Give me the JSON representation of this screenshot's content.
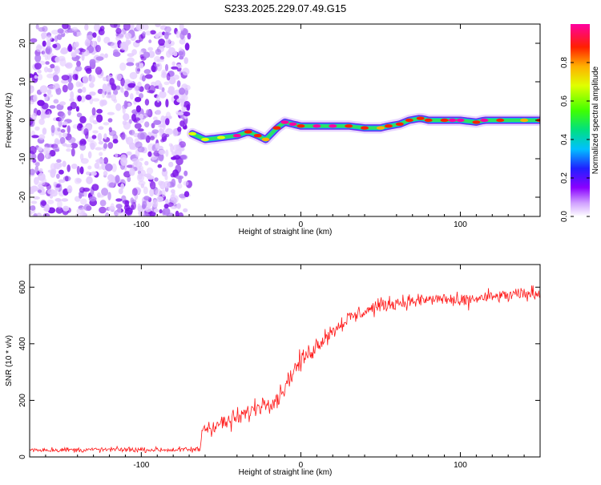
{
  "title": "S233.2025.229.07.49.G15",
  "colors": {
    "signal": "#ff1a1a",
    "noise": "#8a2be2",
    "axis": "#000000"
  },
  "chart_data": [
    {
      "type": "heatmap",
      "title": "S233.2025.229.07.49.G15",
      "xlabel": "Height of straight line (km)",
      "ylabel": "Frequency (Hz)",
      "xlim": [
        -170,
        150
      ],
      "ylim": [
        -25,
        25
      ],
      "xticks": [
        -100,
        0,
        100
      ],
      "yticks": [
        -20,
        -10,
        0,
        10,
        20
      ],
      "colorbar": {
        "label": "Normalized spectral amplitude",
        "range": [
          0,
          1
        ],
        "ticks": [
          0.0,
          0.2,
          0.4,
          0.6,
          0.8
        ]
      },
      "noise_region_x": [
        -170,
        -70
      ],
      "ridge": [
        {
          "x": -68,
          "y": -3.5
        },
        {
          "x": -60,
          "y": -5
        },
        {
          "x": -50,
          "y": -4.5
        },
        {
          "x": -40,
          "y": -4
        },
        {
          "x": -33,
          "y": -3
        },
        {
          "x": -27,
          "y": -4
        },
        {
          "x": -22,
          "y": -5
        },
        {
          "x": -15,
          "y": -2
        },
        {
          "x": -10,
          "y": -0.5
        },
        {
          "x": -5,
          "y": -1
        },
        {
          "x": 0,
          "y": -1.5
        },
        {
          "x": 10,
          "y": -1.5
        },
        {
          "x": 20,
          "y": -1.5
        },
        {
          "x": 30,
          "y": -1.5
        },
        {
          "x": 40,
          "y": -2
        },
        {
          "x": 50,
          "y": -2
        },
        {
          "x": 55,
          "y": -1.5
        },
        {
          "x": 62,
          "y": -1
        },
        {
          "x": 68,
          "y": 0
        },
        {
          "x": 75,
          "y": 0.5
        },
        {
          "x": 80,
          "y": 0
        },
        {
          "x": 90,
          "y": 0
        },
        {
          "x": 95,
          "y": 0
        },
        {
          "x": 100,
          "y": 0
        },
        {
          "x": 110,
          "y": -0.5
        },
        {
          "x": 115,
          "y": 0
        },
        {
          "x": 125,
          "y": 0
        },
        {
          "x": 140,
          "y": 0
        },
        {
          "x": 150,
          "y": 0
        }
      ]
    },
    {
      "type": "line",
      "xlabel": "Height of straight line (km)",
      "ylabel": "SNR (10 * v/v)",
      "xlim": [
        -170,
        150
      ],
      "ylim": [
        0,
        680
      ],
      "xticks": [
        -100,
        0,
        100
      ],
      "yticks": [
        0,
        200,
        400,
        600
      ],
      "series": [
        {
          "name": "SNR",
          "x": [
            -170,
            -140,
            -110,
            -80,
            -63,
            -62,
            -55,
            -45,
            -35,
            -25,
            -18,
            -14,
            -10,
            -5,
            0,
            5,
            10,
            15,
            20,
            25,
            30,
            35,
            40,
            45,
            50,
            55,
            60,
            70,
            80,
            90,
            100,
            110,
            120,
            130,
            140,
            150
          ],
          "values": [
            25,
            25,
            26,
            25,
            26,
            100,
            110,
            125,
            150,
            185,
            200,
            210,
            250,
            300,
            340,
            365,
            395,
            425,
            445,
            470,
            490,
            500,
            515,
            525,
            535,
            540,
            545,
            550,
            555,
            560,
            545,
            560,
            565,
            570,
            575,
            580
          ],
          "noise": [
            8,
            8,
            8,
            8,
            10,
            30,
            30,
            30,
            28,
            28,
            30,
            32,
            30,
            30,
            30,
            28,
            28,
            28,
            25,
            25,
            25,
            25,
            25,
            25,
            22,
            22,
            22,
            22,
            22,
            22,
            22,
            22,
            22,
            22,
            22,
            22
          ]
        }
      ]
    }
  ]
}
